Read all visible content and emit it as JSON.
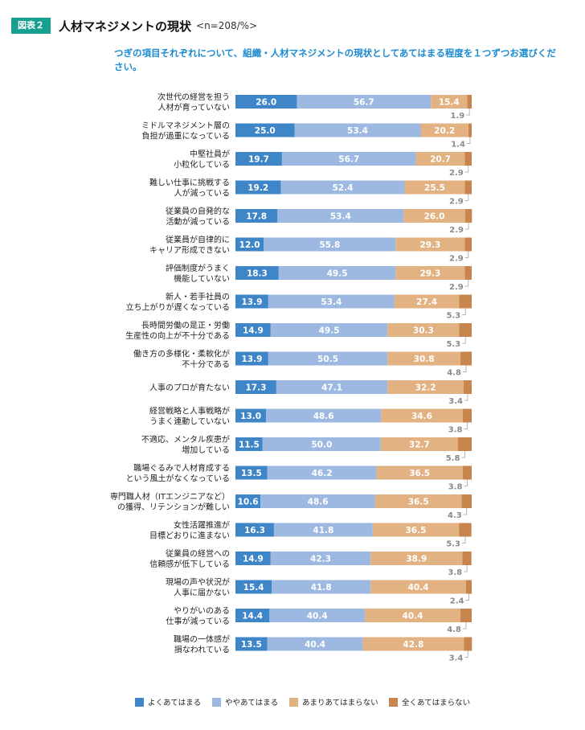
{
  "header": {
    "badge": "図表２",
    "title": "人材マネジメントの現状",
    "n_note": "<n=208/%>"
  },
  "question": "つぎの項目それぞれについて、組織・人材マネジメントの現状としてあてはまる程度を１つずつお選びください。",
  "chart_data": {
    "type": "bar",
    "orientation": "horizontal",
    "stacked": true,
    "unit": "%",
    "xlim": [
      0,
      100
    ],
    "categories": [
      [
        "次世代の経営を担う",
        "人材が育っていない"
      ],
      [
        "ミドルマネジメント層の",
        "負担が過重になっている"
      ],
      [
        "中堅社員が",
        "小粒化している"
      ],
      [
        "難しい仕事に挑戦する",
        "人が減っている"
      ],
      [
        "従業員の自発的な",
        "活動が減っている"
      ],
      [
        "従業員が自律的に",
        "キャリア形成できない"
      ],
      [
        "評価制度がうまく",
        "機能していない"
      ],
      [
        "新人・若手社員の",
        "立ち上がりが遅くなっている"
      ],
      [
        "長時間労働の是正・労働",
        "生産性の向上が不十分である"
      ],
      [
        "働き方の多様化・柔軟化が",
        "不十分である"
      ],
      [
        "人事のプロが育たない"
      ],
      [
        "経営戦略と人事戦略が",
        "うまく連動していない"
      ],
      [
        "不適応、メンタル疾患が",
        "増加している"
      ],
      [
        "職場ぐるみで人材育成する",
        "という風土がなくなっている"
      ],
      [
        "専門職人材（ITエンジニアなど）",
        "の獲得、リテンションが難しい"
      ],
      [
        "女性活躍推進が",
        "目標どおりに進まない"
      ],
      [
        "従業員の経営への",
        "信頼感が低下している"
      ],
      [
        "現場の声や状況が",
        "人事に届かない"
      ],
      [
        "やりがいのある",
        "仕事が減っている"
      ],
      [
        "職場の一体感が",
        "損なわれている"
      ]
    ],
    "series": [
      {
        "name": "よくあてはまる",
        "color": "#3f86c9",
        "values": [
          26.0,
          25.0,
          19.7,
          19.2,
          17.8,
          12.0,
          18.3,
          13.9,
          14.9,
          13.9,
          17.3,
          13.0,
          11.5,
          13.5,
          10.6,
          16.3,
          14.9,
          15.4,
          14.4,
          13.5
        ]
      },
      {
        "name": "ややあてはまる",
        "color": "#9db9e2",
        "values": [
          56.7,
          53.4,
          56.7,
          52.4,
          53.4,
          55.8,
          49.5,
          53.4,
          49.5,
          50.5,
          47.1,
          48.6,
          50.0,
          46.2,
          48.6,
          41.8,
          42.3,
          41.8,
          40.4,
          40.4
        ]
      },
      {
        "name": "あまりあてはまらない",
        "color": "#e3b282",
        "values": [
          15.4,
          20.2,
          20.7,
          25.5,
          26.0,
          29.3,
          29.3,
          27.4,
          30.3,
          30.8,
          32.2,
          34.6,
          32.7,
          36.5,
          36.5,
          36.5,
          38.9,
          40.4,
          40.4,
          42.8
        ]
      },
      {
        "name": "全くあてはまらない",
        "color": "#c9854e",
        "values": [
          1.9,
          1.4,
          2.9,
          2.9,
          2.9,
          2.9,
          2.9,
          5.3,
          5.3,
          4.8,
          3.4,
          3.8,
          5.8,
          3.8,
          4.3,
          5.3,
          3.8,
          2.4,
          4.8,
          3.4
        ]
      }
    ],
    "legend_placement": "bottom",
    "grid": false
  }
}
